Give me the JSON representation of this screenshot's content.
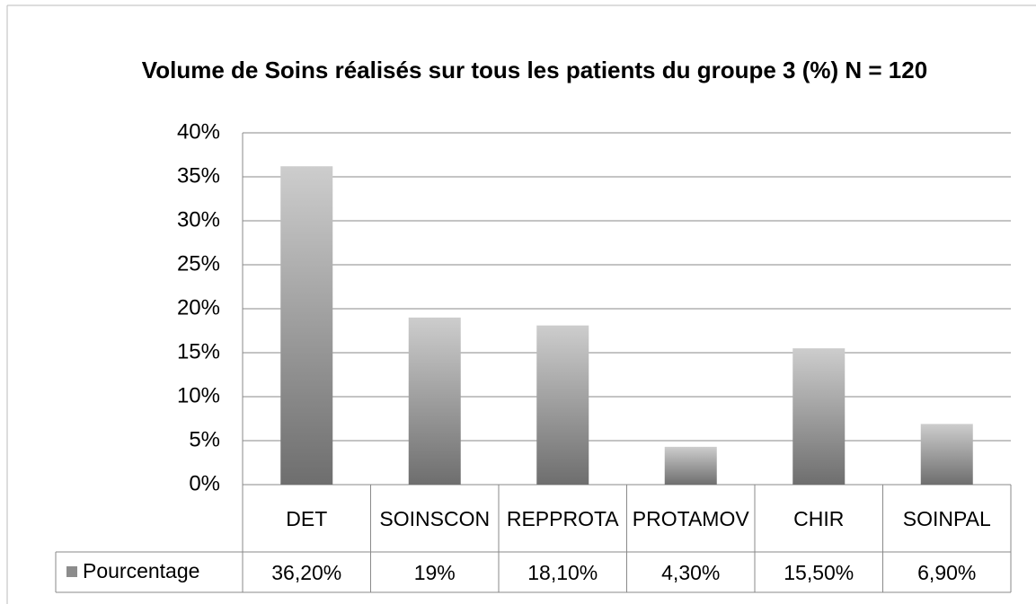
{
  "chart_data": {
    "type": "bar",
    "title": "Volume de Soins réalisés sur tous les patients du groupe 3 (%) N = 120",
    "categories": [
      "DET",
      "SOINSCON",
      "REPPROTA",
      "PROTAMOV",
      "CHIR",
      "SOINPAL"
    ],
    "series": [
      {
        "name": "Pourcentage",
        "color": "#8c8c8c",
        "values": [
          36.2,
          19,
          18.1,
          4.3,
          15.5,
          6.9
        ],
        "value_labels": [
          "36,20%",
          "19%",
          "18,10%",
          "4,30%",
          "15,50%",
          "6,90%"
        ]
      }
    ],
    "ylim": [
      0,
      40
    ],
    "yticks": [
      {
        "value": 0,
        "label": "0%"
      },
      {
        "value": 5,
        "label": "5%"
      },
      {
        "value": 10,
        "label": "10%"
      },
      {
        "value": 15,
        "label": "15%"
      },
      {
        "value": 20,
        "label": "20%"
      },
      {
        "value": 25,
        "label": "25%"
      },
      {
        "value": 30,
        "label": "30%"
      },
      {
        "value": 35,
        "label": "35%"
      },
      {
        "value": 40,
        "label": "40%"
      }
    ],
    "grid": true
  }
}
